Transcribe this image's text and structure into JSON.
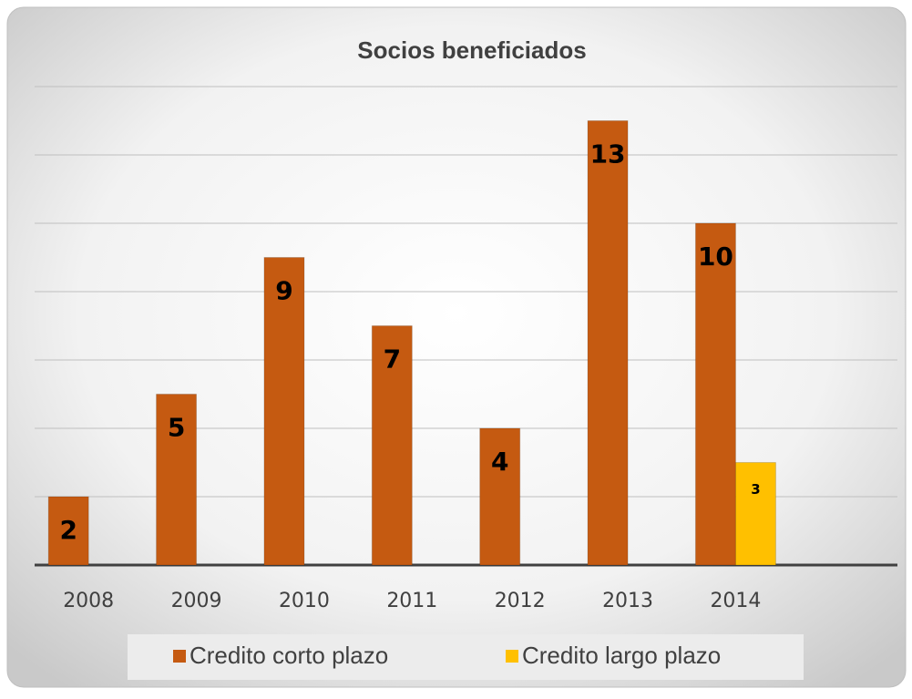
{
  "chart_data": {
    "type": "bar",
    "title": "Socios beneficiados",
    "categories": [
      "2008",
      "2009",
      "2010",
      "2011",
      "2012",
      "2013",
      "2014",
      null
    ],
    "series": [
      {
        "name": "Credito corto plazo",
        "color": "#c55a11",
        "values": [
          2,
          5,
          9,
          7,
          4,
          13,
          10,
          null
        ]
      },
      {
        "name": "Credito largo plazo",
        "color": "#ffc000",
        "values": [
          null,
          null,
          null,
          null,
          null,
          null,
          3,
          null
        ]
      }
    ],
    "ylim": [
      0,
      14
    ],
    "yticks": [
      0,
      2,
      4,
      6,
      8,
      10,
      12,
      14
    ],
    "grid": true,
    "legend": "bottom"
  }
}
